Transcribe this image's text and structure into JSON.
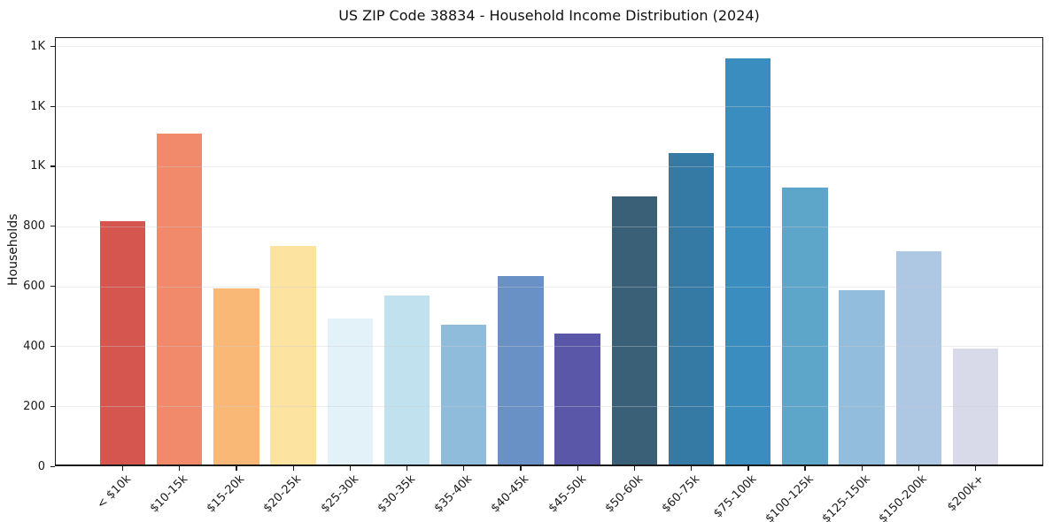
{
  "title": "US ZIP Code 38834 - Household Income Distribution (2024)",
  "chart_data": {
    "type": "bar",
    "title": "US ZIP Code 38834 - Household Income Distribution (2024)",
    "xlabel": "",
    "ylabel": "Households",
    "legend": "none",
    "grid": "horizontal-light-gray",
    "background": "#ffffff",
    "ylim": [
      0,
      1430
    ],
    "categories": [
      "< $10k",
      "$10-15k",
      "$15-20k",
      "$20-25k",
      "$25-30k",
      "$30-35k",
      "$35-40k",
      "$40-45k",
      "$45-50k",
      "$50-60k",
      "$60-75k",
      "$75-100k",
      "$100-125k",
      "$125-150k",
      "$150-200k",
      "$200k+"
    ],
    "values": [
      815,
      1105,
      590,
      730,
      490,
      565,
      470,
      632,
      440,
      895,
      1040,
      1355,
      925,
      585,
      715,
      390
    ],
    "bar_colors": [
      "#d5564e",
      "#f08a6a",
      "#fab877",
      "#fce3a0",
      "#e3f2f8",
      "#c1e1ee",
      "#90bcdc",
      "#6991c5",
      "#5a57a8",
      "#3a6078",
      "#357aa4",
      "#398dbf",
      "#5ea6c9",
      "#93bddd",
      "#aec7e3",
      "#d8dae9"
    ],
    "yticks": [
      {
        "value": 0,
        "label": "0"
      },
      {
        "value": 200,
        "label": "200"
      },
      {
        "value": 400,
        "label": "400"
      },
      {
        "value": 600,
        "label": "600"
      },
      {
        "value": 800,
        "label": "800"
      },
      {
        "value": 1000,
        "label": "1K"
      },
      {
        "value": 1200,
        "label": "1K"
      },
      {
        "value": 1400,
        "label": "1K"
      }
    ]
  }
}
